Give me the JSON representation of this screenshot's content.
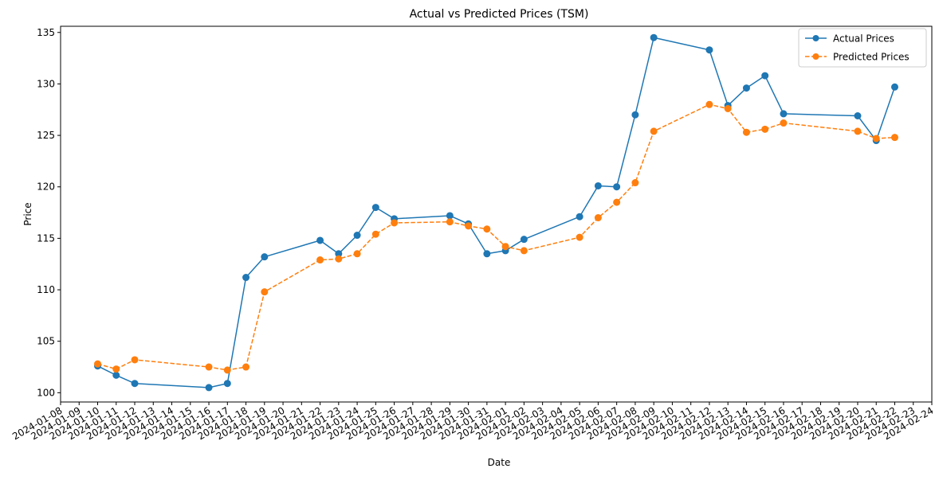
{
  "chart_data": {
    "type": "line",
    "title": "Actual vs Predicted Prices (TSM)",
    "xlabel": "Date",
    "ylabel": "Price",
    "grid": false,
    "legend_position": "top-right",
    "xlim": [
      "2024-01-08",
      "2024-02-24"
    ],
    "ylim": [
      99.1,
      135.6
    ],
    "x_ticks": [
      "2024-01-08",
      "2024-01-09",
      "2024-01-10",
      "2024-01-11",
      "2024-01-12",
      "2024-01-13",
      "2024-01-14",
      "2024-01-15",
      "2024-01-16",
      "2024-01-17",
      "2024-01-18",
      "2024-01-19",
      "2024-01-20",
      "2024-01-21",
      "2024-01-22",
      "2024-01-23",
      "2024-01-24",
      "2024-01-25",
      "2024-01-26",
      "2024-01-27",
      "2024-01-28",
      "2024-01-29",
      "2024-01-30",
      "2024-01-31",
      "2024-02-01",
      "2024-02-02",
      "2024-02-03",
      "2024-02-04",
      "2024-02-05",
      "2024-02-06",
      "2024-02-07",
      "2024-02-08",
      "2024-02-09",
      "2024-02-10",
      "2024-02-11",
      "2024-02-12",
      "2024-02-13",
      "2024-02-14",
      "2024-02-15",
      "2024-02-16",
      "2024-02-17",
      "2024-02-18",
      "2024-02-19",
      "2024-02-20",
      "2024-02-21",
      "2024-02-22",
      "2024-02-23",
      "2024-02-24"
    ],
    "y_ticks": [
      100,
      105,
      110,
      115,
      120,
      125,
      130,
      135
    ],
    "x": [
      "2024-01-10",
      "2024-01-11",
      "2024-01-12",
      "2024-01-16",
      "2024-01-17",
      "2024-01-18",
      "2024-01-19",
      "2024-01-22",
      "2024-01-23",
      "2024-01-24",
      "2024-01-25",
      "2024-01-26",
      "2024-01-29",
      "2024-01-30",
      "2024-01-31",
      "2024-02-01",
      "2024-02-02",
      "2024-02-05",
      "2024-02-06",
      "2024-02-07",
      "2024-02-08",
      "2024-02-09",
      "2024-02-12",
      "2024-02-13",
      "2024-02-14",
      "2024-02-15",
      "2024-02-16",
      "2024-02-20",
      "2024-02-21",
      "2024-02-22"
    ],
    "series": [
      {
        "name": "Actual Prices",
        "color": "#1f77b4",
        "linestyle": "solid",
        "marker": "circle",
        "values": [
          102.6,
          101.7,
          100.9,
          100.5,
          100.9,
          111.2,
          113.2,
          114.8,
          113.5,
          115.3,
          118.0,
          116.9,
          117.2,
          116.4,
          113.5,
          113.8,
          114.9,
          117.1,
          120.1,
          120.0,
          127.0,
          134.5,
          133.3,
          127.9,
          129.6,
          130.8,
          127.1,
          126.9,
          124.5,
          129.7
        ]
      },
      {
        "name": "Predicted Prices",
        "color": "#ff7f0e",
        "linestyle": "dashed",
        "marker": "circle",
        "values": [
          102.8,
          102.3,
          103.2,
          102.5,
          102.2,
          102.5,
          109.8,
          112.9,
          113.0,
          113.5,
          115.4,
          116.5,
          116.6,
          116.2,
          115.9,
          114.2,
          113.8,
          115.1,
          117.0,
          118.5,
          120.4,
          125.4,
          128.0,
          127.6,
          125.3,
          125.6,
          126.2,
          125.4,
          124.7,
          124.8
        ]
      }
    ]
  }
}
